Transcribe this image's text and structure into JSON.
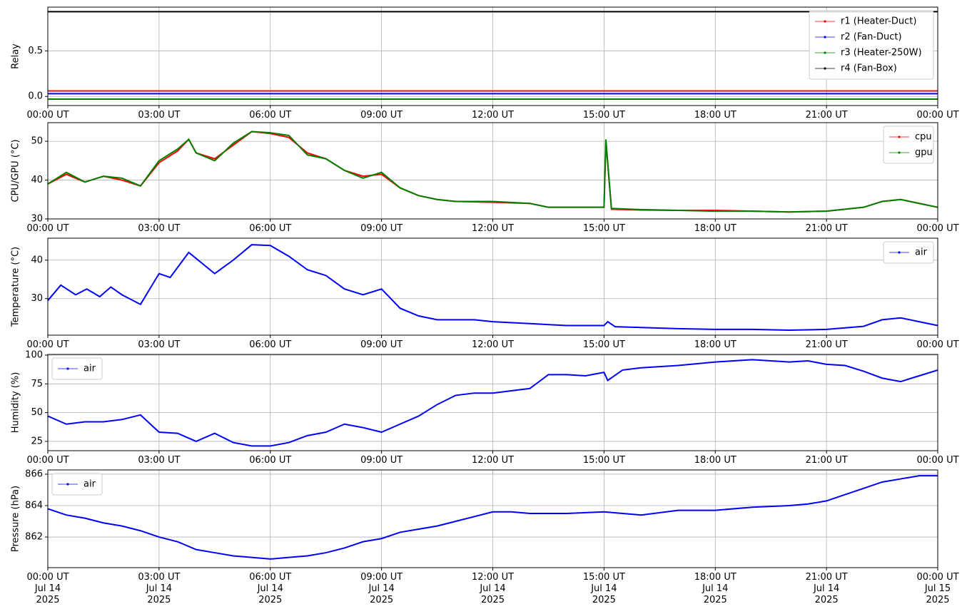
{
  "chart_data": [
    {
      "type": "line",
      "ylabel": "Relay",
      "ylim": [
        -0.1,
        0.98
      ],
      "yticks": [
        {
          "value": 0,
          "label": "0.0"
        },
        0.5
      ],
      "xlim": [
        0,
        24
      ],
      "grid": true,
      "legend": "upper right",
      "xticks": [
        {
          "value": 0,
          "label": "00:00 UT"
        },
        {
          "value": 3,
          "label": "03:00 UT"
        },
        {
          "value": 6,
          "label": "06:00 UT"
        },
        {
          "value": 9,
          "label": "09:00 UT"
        },
        {
          "value": 12,
          "label": "12:00 UT"
        },
        {
          "value": 15,
          "label": "15:00 UT"
        },
        {
          "value": 18,
          "label": "18:00 UT"
        },
        {
          "value": 21,
          "label": "21:00 UT"
        },
        {
          "value": 24,
          "label": "00:00 UT"
        }
      ],
      "x": [
        0,
        24
      ],
      "series": [
        {
          "name": "r1 (Heater-Duct)",
          "color": "#ff0000",
          "values": [
            0.06,
            0.06
          ]
        },
        {
          "name": "r2 (Fan-Duct)",
          "color": "#0000ff",
          "values": [
            0.03,
            0.03
          ]
        },
        {
          "name": "r3 (Heater-250W)",
          "color": "#008000",
          "values": [
            -0.03,
            -0.03
          ]
        },
        {
          "name": "r4 (Fan-Box)",
          "color": "#000000",
          "values": [
            0.93,
            0.93
          ]
        }
      ]
    },
    {
      "type": "line",
      "ylabel": "CPU/GPU (°C)",
      "ylim": [
        30,
        54.8
      ],
      "yticks": [
        30,
        40,
        50
      ],
      "xlim": [
        0,
        24
      ],
      "grid": true,
      "legend": "upper right",
      "xticks": [
        {
          "value": 0,
          "label": "00:00 UT"
        },
        {
          "value": 3,
          "label": "03:00 UT"
        },
        {
          "value": 6,
          "label": "06:00 UT"
        },
        {
          "value": 9,
          "label": "09:00 UT"
        },
        {
          "value": 12,
          "label": "12:00 UT"
        },
        {
          "value": 15,
          "label": "15:00 UT"
        },
        {
          "value": 18,
          "label": "18:00 UT"
        },
        {
          "value": 21,
          "label": "21:00 UT"
        },
        {
          "value": 24,
          "label": "00:00 UT"
        }
      ],
      "x": [
        0,
        0.5,
        1,
        1.5,
        2,
        2.5,
        3,
        3.5,
        3.8,
        4,
        4.5,
        5,
        5.5,
        6,
        6.5,
        7,
        7.5,
        8,
        8.5,
        9,
        9.5,
        10,
        10.5,
        11,
        12,
        13,
        13.5,
        14,
        15,
        15.05,
        15.2,
        16,
        17,
        18,
        19,
        20,
        21,
        21.5,
        22,
        22.5,
        23,
        23.5,
        24
      ],
      "series": [
        {
          "name": "cpu",
          "color": "#ff0000",
          "values": [
            39,
            41.5,
            39.5,
            41,
            40,
            38.5,
            44.5,
            47.5,
            50.5,
            47,
            45.5,
            49,
            52.5,
            52,
            51,
            47,
            45.5,
            42.5,
            41,
            41.5,
            38,
            36,
            35,
            34.5,
            34.3,
            34,
            33,
            33,
            33,
            50,
            32.5,
            32.3,
            32.2,
            32.2,
            32,
            31.8,
            32,
            32.5,
            33,
            34.5,
            35,
            34,
            33
          ]
        },
        {
          "name": "gpu",
          "color": "#008000",
          "values": [
            39,
            42,
            39.5,
            41,
            40.5,
            38.5,
            45,
            48,
            50.5,
            47,
            45,
            49.5,
            52.5,
            52.2,
            51.5,
            46.5,
            45.5,
            42.5,
            40.5,
            42,
            38,
            36,
            35,
            34.5,
            34.5,
            34,
            33,
            33,
            33,
            50.5,
            32.7,
            32.4,
            32.2,
            32,
            32,
            31.8,
            32,
            32.5,
            33,
            34.5,
            35,
            34,
            33
          ]
        }
      ]
    },
    {
      "type": "line",
      "ylabel": "Temperature (°C)",
      "ylim": [
        20.5,
        45.7
      ],
      "yticks": [
        30,
        40
      ],
      "xlim": [
        0,
        24
      ],
      "grid": true,
      "legend": "upper right",
      "xticks": [
        {
          "value": 0,
          "label": "00:00 UT"
        },
        {
          "value": 3,
          "label": "03:00 UT"
        },
        {
          "value": 6,
          "label": "06:00 UT"
        },
        {
          "value": 9,
          "label": "09:00 UT"
        },
        {
          "value": 12,
          "label": "12:00 UT"
        },
        {
          "value": 15,
          "label": "15:00 UT"
        },
        {
          "value": 18,
          "label": "18:00 UT"
        },
        {
          "value": 21,
          "label": "21:00 UT"
        },
        {
          "value": 24,
          "label": "00:00 UT"
        }
      ],
      "x": [
        0,
        0.35,
        0.75,
        1.05,
        1.4,
        1.7,
        2,
        2.5,
        3,
        3.3,
        3.8,
        4.5,
        5,
        5.5,
        6,
        6.5,
        7,
        7.5,
        8,
        8.5,
        9,
        9.5,
        10,
        10.5,
        11.5,
        12,
        13,
        14,
        15,
        15.1,
        15.3,
        16,
        17,
        18,
        19,
        20,
        21,
        22,
        22.5,
        23,
        23.5,
        24
      ],
      "series": [
        {
          "name": "air",
          "color": "#0000ff",
          "values": [
            29.5,
            33.5,
            31,
            32.5,
            30.5,
            33,
            31,
            28.5,
            36.5,
            35.5,
            42,
            36.5,
            40,
            44,
            43.8,
            41,
            37.5,
            36,
            32.5,
            31,
            32.5,
            27.5,
            25.5,
            24.5,
            24.5,
            24,
            23.5,
            23,
            23,
            24,
            22.7,
            22.5,
            22.2,
            22,
            22,
            21.8,
            22,
            22.8,
            24.5,
            25,
            24,
            23
          ]
        }
      ]
    },
    {
      "type": "line",
      "ylabel": "Humidity (%)",
      "ylim": [
        16.9,
        100.6
      ],
      "yticks": [
        25,
        50,
        75,
        100
      ],
      "xlim": [
        0,
        24
      ],
      "grid": true,
      "legend": "upper left",
      "xticks": [
        {
          "value": 0,
          "label": "00:00 UT"
        },
        {
          "value": 3,
          "label": "03:00 UT"
        },
        {
          "value": 6,
          "label": "06:00 UT"
        },
        {
          "value": 9,
          "label": "09:00 UT"
        },
        {
          "value": 12,
          "label": "12:00 UT"
        },
        {
          "value": 15,
          "label": "15:00 UT"
        },
        {
          "value": 18,
          "label": "18:00 UT"
        },
        {
          "value": 21,
          "label": "21:00 UT"
        },
        {
          "value": 24,
          "label": "00:00 UT"
        }
      ],
      "x": [
        0,
        0.5,
        1,
        1.5,
        2,
        2.5,
        3,
        3.5,
        4,
        4.5,
        5,
        5.5,
        6,
        6.5,
        7,
        7.5,
        8,
        8.5,
        9,
        9.5,
        10,
        10.5,
        11,
        11.5,
        12,
        13,
        13.5,
        14,
        14.5,
        15,
        15.1,
        15.5,
        16,
        17,
        18,
        19,
        20,
        20.5,
        21,
        21.5,
        22,
        22.5,
        23,
        23.5,
        24
      ],
      "series": [
        {
          "name": "air",
          "color": "#0000ff",
          "values": [
            47,
            40,
            42,
            42,
            44,
            48,
            33,
            32,
            25,
            32,
            24,
            21,
            21,
            24,
            30,
            33,
            40,
            37,
            33,
            40,
            47,
            57,
            65,
            67,
            67,
            71,
            83,
            83,
            82,
            85,
            78,
            87,
            89,
            91,
            94,
            96,
            94,
            95,
            92,
            91,
            86,
            80,
            77,
            82,
            87
          ]
        }
      ]
    },
    {
      "type": "line",
      "ylabel": "Pressure (hPa)",
      "ylim": [
        860.05,
        866.27
      ],
      "yticks": [
        862,
        864,
        866
      ],
      "xlim": [
        0,
        24
      ],
      "grid": true,
      "legend": "upper left",
      "xticks": [
        {
          "value": 0,
          "label": "00:00 UT\nJul 14\n2025"
        },
        {
          "value": 3,
          "label": "03:00 UT\nJul 14\n2025"
        },
        {
          "value": 6,
          "label": "06:00 UT\nJul 14\n2025"
        },
        {
          "value": 9,
          "label": "09:00 UT\nJul 14\n2025"
        },
        {
          "value": 12,
          "label": "12:00 UT\nJul 14\n2025"
        },
        {
          "value": 15,
          "label": "15:00 UT\nJul 14\n2025"
        },
        {
          "value": 18,
          "label": "18:00 UT\nJul 14\n2025"
        },
        {
          "value": 21,
          "label": "21:00 UT\nJul 14\n2025"
        },
        {
          "value": 24,
          "label": "00:00 UT\nJul 15\n2025"
        }
      ],
      "x": [
        0,
        0.5,
        1,
        1.5,
        2,
        2.5,
        3,
        3.5,
        4,
        4.5,
        5,
        5.5,
        6,
        6.5,
        7,
        7.5,
        8,
        8.5,
        9,
        9.5,
        10,
        10.5,
        11,
        11.5,
        12,
        12.5,
        13,
        14,
        15,
        15.5,
        16,
        17,
        18,
        19,
        20,
        20.5,
        21,
        21.5,
        22,
        22.5,
        23,
        23.5,
        24
      ],
      "series": [
        {
          "name": "air",
          "color": "#0000ff",
          "values": [
            863.8,
            863.4,
            863.2,
            862.9,
            862.7,
            862.4,
            862,
            861.7,
            861.2,
            861,
            860.8,
            860.7,
            860.6,
            860.7,
            860.8,
            861,
            861.3,
            861.7,
            861.9,
            862.3,
            862.5,
            862.7,
            863,
            863.3,
            863.6,
            863.6,
            863.5,
            863.5,
            863.6,
            863.5,
            863.4,
            863.7,
            863.7,
            863.9,
            864,
            864.1,
            864.3,
            864.7,
            865.1,
            865.5,
            865.7,
            865.9,
            865.9
          ]
        }
      ]
    }
  ]
}
